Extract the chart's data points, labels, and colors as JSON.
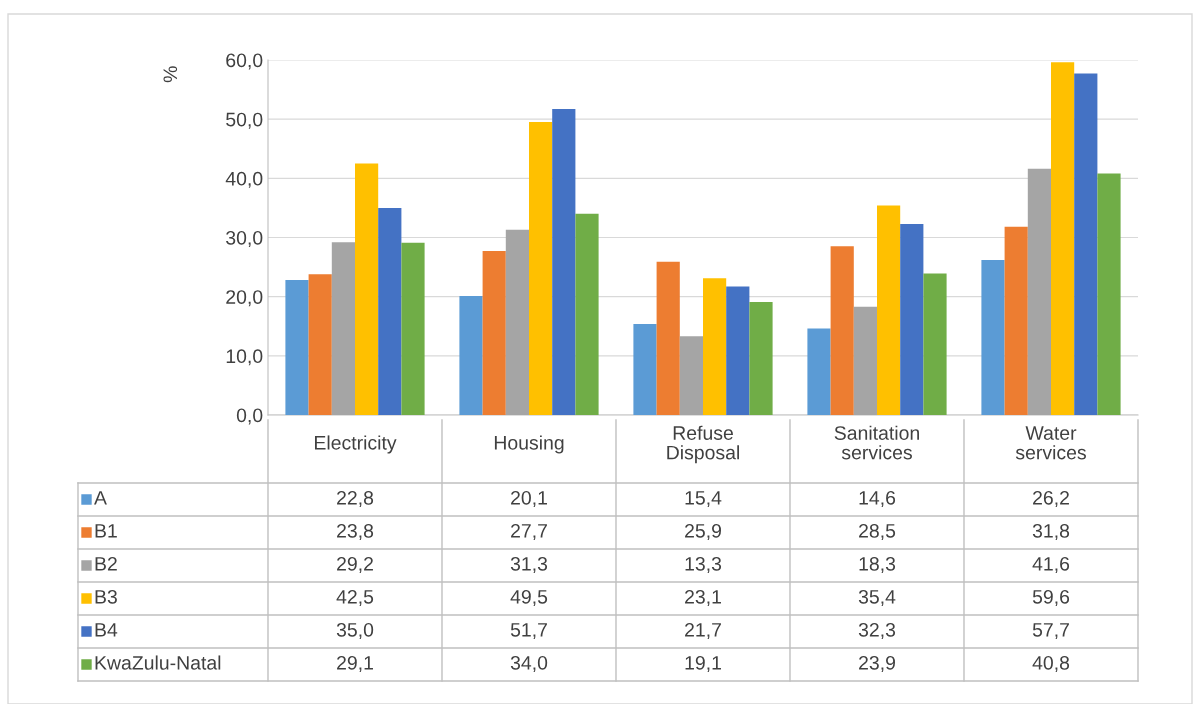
{
  "chart_data": {
    "type": "bar",
    "ylabel": "%",
    "categories": [
      "Electricity",
      "Housing",
      "Refuse\nDisposal",
      "Sanitation\nservices",
      "Water\nservices"
    ],
    "series": [
      {
        "name": "A",
        "color": "#5b9bd5",
        "values": [
          22.8,
          20.1,
          15.4,
          14.6,
          26.2
        ],
        "value_labels": [
          "22,8",
          "20,1",
          "15,4",
          "14,6",
          "26,2"
        ]
      },
      {
        "name": "B1",
        "color": "#ed7d31",
        "values": [
          23.8,
          27.7,
          25.9,
          28.5,
          31.8
        ],
        "value_labels": [
          "23,8",
          "27,7",
          "25,9",
          "28,5",
          "31,8"
        ]
      },
      {
        "name": "B2",
        "color": "#a5a5a5",
        "values": [
          29.2,
          31.3,
          13.3,
          18.3,
          41.6
        ],
        "value_labels": [
          "29,2",
          "31,3",
          "13,3",
          "18,3",
          "41,6"
        ]
      },
      {
        "name": "B3",
        "color": "#ffc000",
        "values": [
          42.5,
          49.5,
          23.1,
          35.4,
          59.6
        ],
        "value_labels": [
          "42,5",
          "49,5",
          "23,1",
          "35,4",
          "59,6"
        ]
      },
      {
        "name": "B4",
        "color": "#4472c4",
        "values": [
          35.0,
          51.7,
          21.7,
          32.3,
          57.7
        ],
        "value_labels": [
          "35,0",
          "51,7",
          "21,7",
          "32,3",
          "57,7"
        ]
      },
      {
        "name": "KwaZulu-Natal",
        "color": "#70ad47",
        "values": [
          29.1,
          34.0,
          19.1,
          23.9,
          40.8
        ],
        "value_labels": [
          "29,1",
          "34,0",
          "19,1",
          "23,9",
          "40,8"
        ]
      }
    ],
    "ylim": [
      0,
      60
    ],
    "yticks": [
      {
        "value": 0,
        "label": "0,0"
      },
      {
        "value": 10,
        "label": "10,0"
      },
      {
        "value": 20,
        "label": "20,0"
      },
      {
        "value": 30,
        "label": "30,0"
      },
      {
        "value": 40,
        "label": "40,0"
      },
      {
        "value": 50,
        "label": "50,0"
      },
      {
        "value": 60,
        "label": "60,0"
      }
    ],
    "grid": "y",
    "legend": "bottom"
  }
}
